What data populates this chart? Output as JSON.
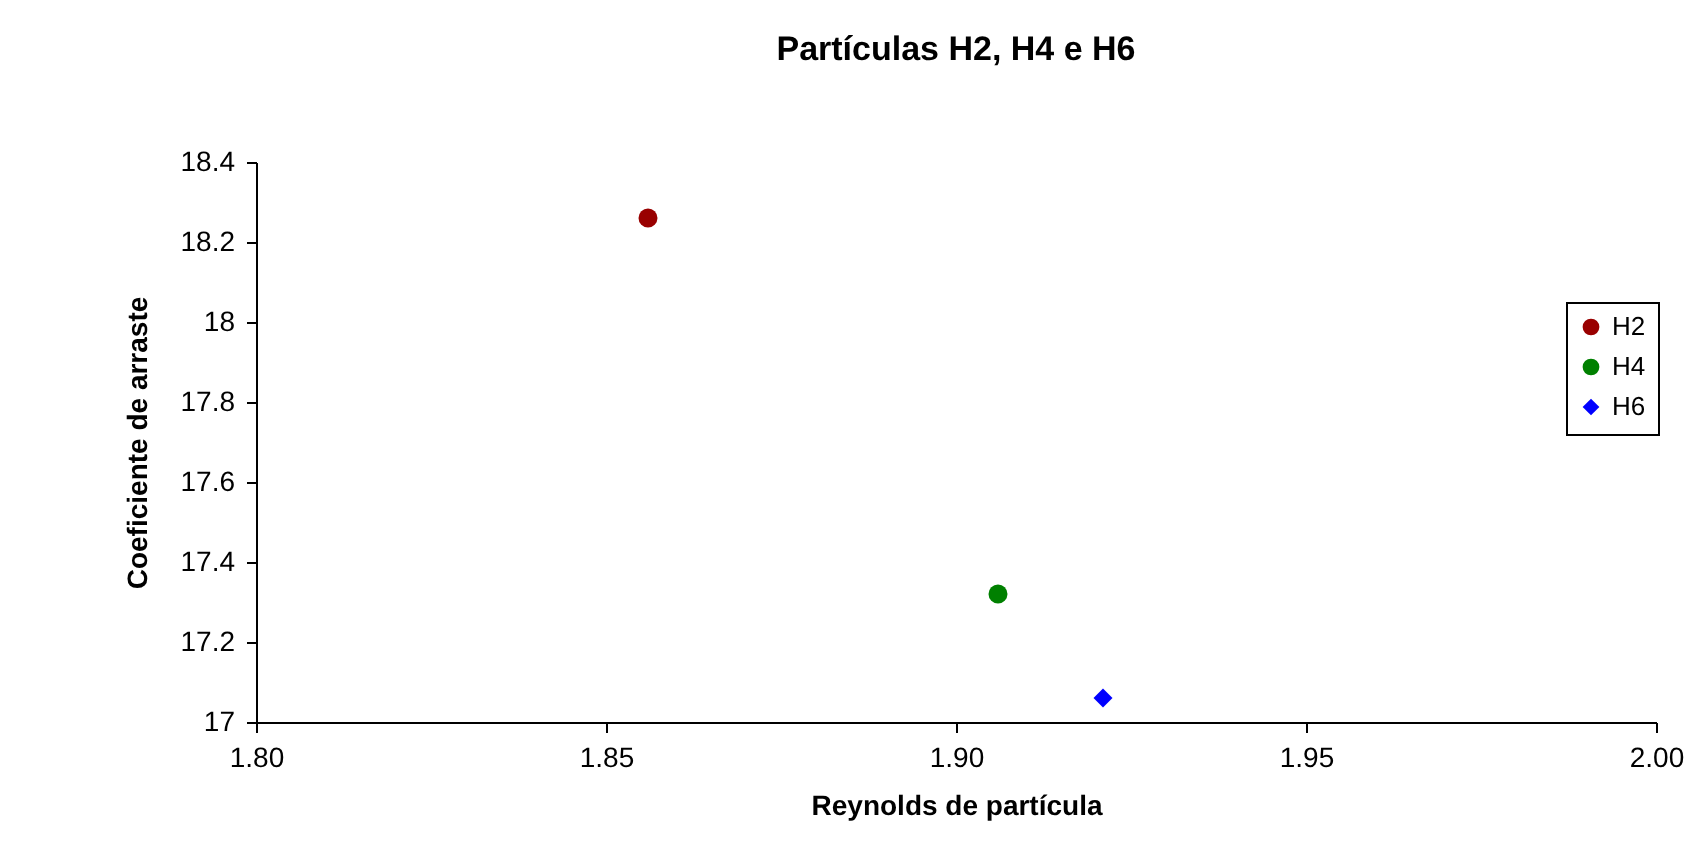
{
  "chart_data": {
    "type": "scatter",
    "title": "Partículas H2, H4 e H6",
    "xlabel": "Reynolds de partícula",
    "ylabel": "Coeficiente de arraste",
    "series": [
      {
        "name": "H2",
        "color": "#990000",
        "marker": "circle",
        "x": [
          1.856
        ],
        "values": [
          18.26
        ]
      },
      {
        "name": "H4",
        "color": "#008000",
        "marker": "circle",
        "x": [
          1.906
        ],
        "values": [
          17.32
        ]
      },
      {
        "name": "H6",
        "color": "#0000ff",
        "marker": "diamond",
        "x": [
          1.921
        ],
        "values": [
          17.06
        ]
      }
    ],
    "xlim": [
      1.8,
      2.0
    ],
    "xticks": [
      {
        "value": 1.8,
        "label": "1.80"
      },
      {
        "value": 1.85,
        "label": "1.85"
      },
      {
        "value": 1.9,
        "label": "1.90"
      },
      {
        "value": 1.95,
        "label": "1.95"
      },
      {
        "value": 2.0,
        "label": "2.00"
      }
    ],
    "ylim": [
      17,
      18.4
    ],
    "yticks": [
      17,
      17.2,
      17.4,
      17.6,
      17.8,
      18,
      18.2,
      18.4
    ],
    "grid": false,
    "legend": "right"
  }
}
